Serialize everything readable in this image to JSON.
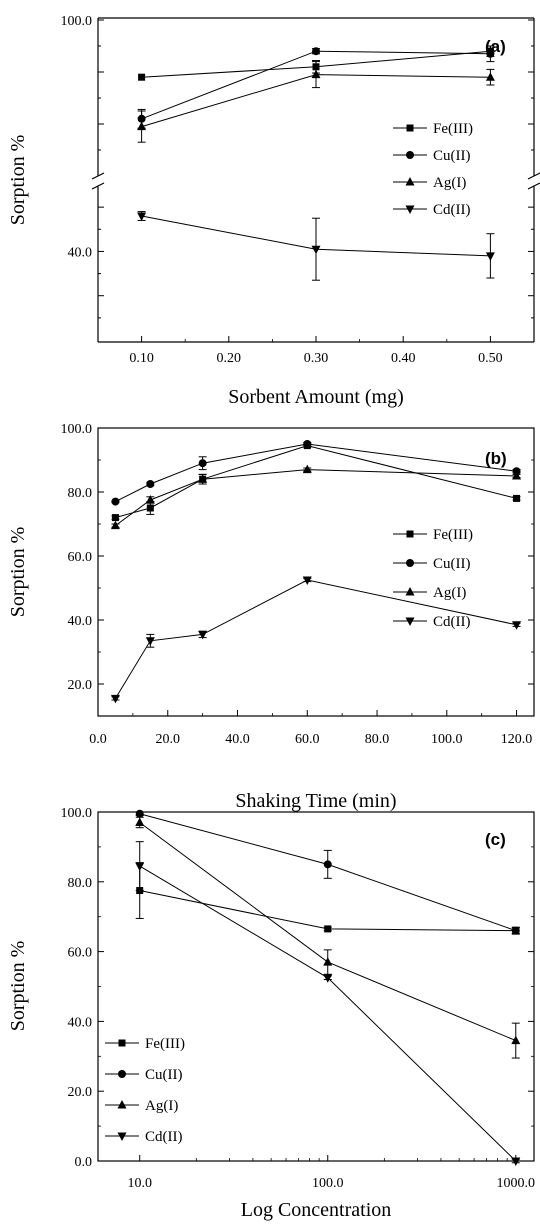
{
  "chart_data": [
    {
      "type": "line",
      "panel_label": "(a)",
      "xlabel": "Sorbent Amount (mg)",
      "ylabel": "Sorption %",
      "x": [
        0.1,
        0.3,
        0.5
      ],
      "xlim": [
        0.05,
        0.55
      ],
      "x_ticks": [
        0.1,
        0.2,
        0.3,
        0.4,
        0.5
      ],
      "x_tick_labels": [
        "0.10",
        "0.20",
        "0.30",
        "0.40",
        "0.50"
      ],
      "y_axis_break": true,
      "y_upper_segment": [
        70,
        100
      ],
      "y_lower_segment": [
        20,
        55
      ],
      "y_tick_labels_shown": [
        "100.0",
        "40.0"
      ],
      "legend_position": "right-middle",
      "series": [
        {
          "name": "Fe(III)",
          "marker": "square",
          "values": [
            89.0,
            91.0,
            94.0
          ],
          "errors": [
            0,
            1.2,
            1.0
          ]
        },
        {
          "name": "Cu(II)",
          "marker": "circle",
          "values": [
            81.0,
            94.0,
            93.5
          ],
          "errors": [
            1.8,
            0.5,
            1.5
          ]
        },
        {
          "name": "Ag(I)",
          "marker": "triangle-up",
          "values": [
            79.5,
            89.5,
            89.0
          ],
          "errors": [
            3.0,
            2.5,
            1.5
          ]
        },
        {
          "name": "Cd(II)",
          "marker": "triangle-down",
          "values": [
            48.0,
            40.5,
            39.0
          ],
          "errors": [
            1.0,
            7.0,
            5.0
          ]
        }
      ]
    },
    {
      "type": "line",
      "panel_label": "(b)",
      "xlabel": "Shaking Time (min)",
      "ylabel": "Sorption %",
      "x": [
        5,
        15,
        30,
        60,
        120
      ],
      "xlim": [
        0,
        125
      ],
      "x_ticks": [
        0,
        20,
        40,
        60,
        80,
        100,
        120
      ],
      "x_tick_labels": [
        "0.0",
        "20.0",
        "40.0",
        "60.0",
        "80.0",
        "100.0",
        "120.0"
      ],
      "ylim": [
        10,
        100
      ],
      "y_ticks": [
        20,
        40,
        60,
        80,
        100
      ],
      "y_tick_labels": [
        "20.0",
        "40.0",
        "60.0",
        "80.0",
        "100.0"
      ],
      "legend_position": "right-middle",
      "series": [
        {
          "name": "Fe(III)",
          "marker": "square",
          "values": [
            72.0,
            75.0,
            84.0,
            94.5,
            78.0
          ],
          "errors": [
            0.5,
            2.0,
            1.5,
            0.5,
            0.5
          ]
        },
        {
          "name": "Cu(II)",
          "marker": "circle",
          "values": [
            77.0,
            82.5,
            89.0,
            95.0,
            86.5
          ],
          "errors": [
            0.3,
            0.5,
            2.0,
            0.5,
            0.5
          ]
        },
        {
          "name": "Ag(I)",
          "marker": "triangle-up",
          "values": [
            69.5,
            77.5,
            84.0,
            87.0,
            85.0
          ],
          "errors": [
            0.5,
            1.0,
            1.5,
            0.5,
            0.5
          ]
        },
        {
          "name": "Cd(II)",
          "marker": "triangle-down",
          "values": [
            15.5,
            33.5,
            35.5,
            52.5,
            38.5
          ],
          "errors": [
            0.5,
            2.0,
            1.0,
            0.5,
            0.5
          ]
        }
      ]
    },
    {
      "type": "line",
      "panel_label": "(c)",
      "xlabel": "Log Concentration",
      "ylabel": "Sorption %",
      "x_scale": "log",
      "x": [
        10,
        100,
        1000
      ],
      "xlim": [
        6,
        1250
      ],
      "x_ticks": [
        10,
        100,
        1000
      ],
      "x_tick_labels": [
        "10.0",
        "100.0",
        "1000.0"
      ],
      "ylim": [
        0,
        100
      ],
      "y_ticks": [
        0,
        20,
        40,
        60,
        80,
        100
      ],
      "y_tick_labels": [
        "0.0",
        "20.0",
        "40.0",
        "60.0",
        "80.0",
        "100.0"
      ],
      "legend_position": "left-bottom",
      "series": [
        {
          "name": "Fe(III)",
          "marker": "square",
          "values": [
            77.5,
            66.5,
            66.0
          ],
          "errors": [
            8.0,
            0.5,
            1.0
          ]
        },
        {
          "name": "Cu(II)",
          "marker": "circle",
          "values": [
            99.5,
            85.0,
            66.0
          ],
          "errors": [
            0.5,
            4.0,
            0.8
          ]
        },
        {
          "name": "Ag(I)",
          "marker": "triangle-up",
          "values": [
            97.0,
            57.0,
            34.5
          ],
          "errors": [
            1.5,
            3.5,
            5.0
          ]
        },
        {
          "name": "Cd(II)",
          "marker": "triangle-down",
          "values": [
            84.5,
            52.5,
            0.0
          ],
          "errors": [
            7.0,
            0.5,
            0.5
          ]
        }
      ]
    }
  ]
}
